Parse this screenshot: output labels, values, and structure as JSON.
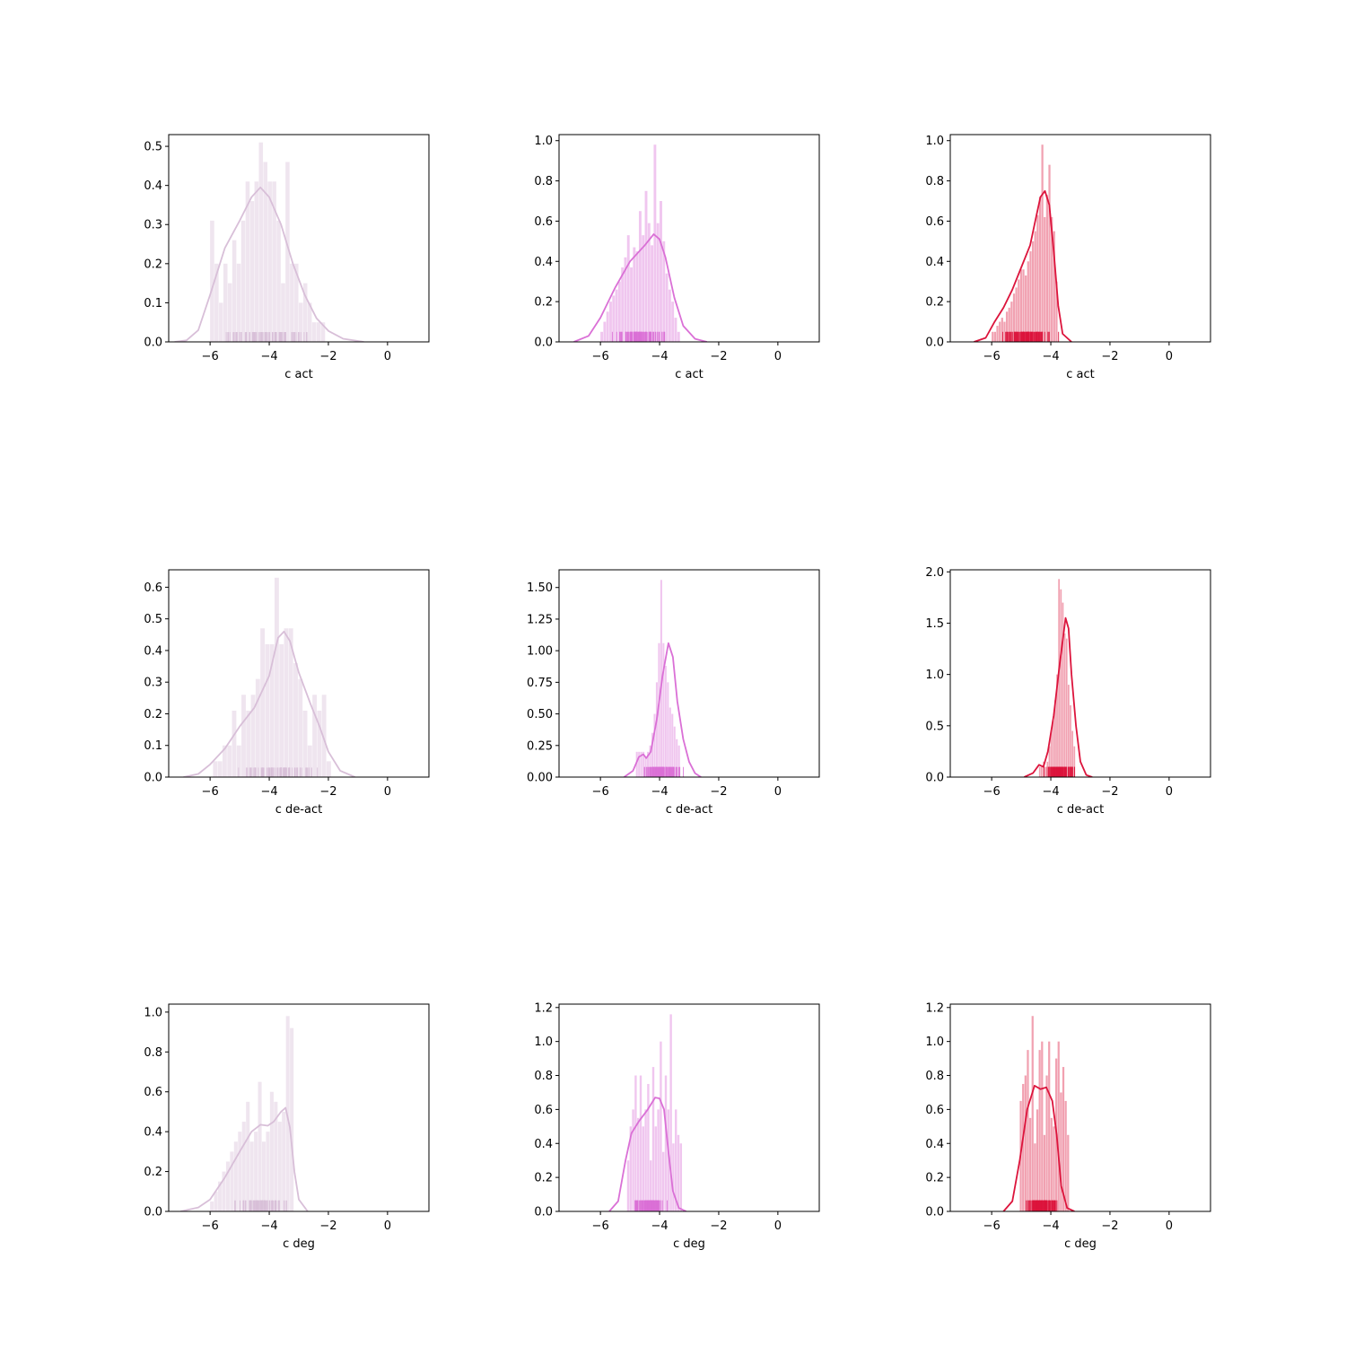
{
  "chart_data": [
    {
      "type": "histogram+kde+rug",
      "xlabel": "c act",
      "color": "#d8bfd8",
      "xlim": [
        -7.4,
        1.4
      ],
      "ylim": [
        0,
        0.53
      ],
      "xticks": [
        -6,
        -4,
        -2,
        0
      ],
      "yticks": [
        0.0,
        0.1,
        0.2,
        0.3,
        0.4,
        0.5
      ],
      "ytick_labels": [
        "0.0",
        "0.1",
        "0.2",
        "0.3",
        "0.4",
        "0.5"
      ],
      "bin_start": -6.0,
      "bin_width": 0.15,
      "bars": [
        0.31,
        0.2,
        0.1,
        0.2,
        0.15,
        0.26,
        0.2,
        0.31,
        0.41,
        0.36,
        0.41,
        0.51,
        0.46,
        0.41,
        0.41,
        0.31,
        0.15,
        0.46,
        0.2,
        0.2,
        0.1,
        0.15,
        0.1,
        0.05,
        0.05,
        0.05
      ],
      "kde": [
        [
          -7.2,
          0.0
        ],
        [
          -6.8,
          0.004
        ],
        [
          -6.4,
          0.03
        ],
        [
          -6.0,
          0.12
        ],
        [
          -5.5,
          0.24
        ],
        [
          -5.0,
          0.31
        ],
        [
          -4.6,
          0.37
        ],
        [
          -4.3,
          0.395
        ],
        [
          -4.0,
          0.37
        ],
        [
          -3.6,
          0.3
        ],
        [
          -3.2,
          0.2
        ],
        [
          -2.8,
          0.12
        ],
        [
          -2.4,
          0.06
        ],
        [
          -2.0,
          0.028
        ],
        [
          -1.5,
          0.008
        ],
        [
          -0.8,
          0.0
        ]
      ],
      "rug_range": [
        -6.0,
        -2.0
      ],
      "rug_height": 0.025
    },
    {
      "type": "histogram+kde+rug",
      "xlabel": "c act",
      "color": "#da70d6",
      "xlim": [
        -7.4,
        1.4
      ],
      "ylim": [
        0,
        1.03
      ],
      "xticks": [
        -6,
        -4,
        -2,
        0
      ],
      "yticks": [
        0.0,
        0.2,
        0.4,
        0.6,
        0.8,
        1.0
      ],
      "ytick_labels": [
        "0.0",
        "0.2",
        "0.4",
        "0.6",
        "0.8",
        "1.0"
      ],
      "bin_start": -6.0,
      "bin_width": 0.1,
      "bars": [
        0.05,
        0.1,
        0.15,
        0.2,
        0.23,
        0.26,
        0.3,
        0.37,
        0.42,
        0.53,
        0.37,
        0.47,
        0.45,
        0.65,
        0.53,
        0.75,
        0.59,
        0.48,
        0.98,
        0.59,
        0.7,
        0.5,
        0.34,
        0.26,
        0.2,
        0.12,
        0.05
      ],
      "kde": [
        [
          -6.9,
          0.0
        ],
        [
          -6.4,
          0.03
        ],
        [
          -6.0,
          0.12
        ],
        [
          -5.5,
          0.27
        ],
        [
          -5.0,
          0.4
        ],
        [
          -4.5,
          0.48
        ],
        [
          -4.2,
          0.535
        ],
        [
          -4.0,
          0.51
        ],
        [
          -3.8,
          0.42
        ],
        [
          -3.5,
          0.22
        ],
        [
          -3.2,
          0.08
        ],
        [
          -2.8,
          0.015
        ],
        [
          -2.4,
          0.0
        ]
      ],
      "rug_range": [
        -5.95,
        -3.3
      ],
      "rug_height": 0.05
    },
    {
      "type": "histogram+kde+rug",
      "xlabel": "c act",
      "color": "#dc143c",
      "xlim": [
        -7.4,
        1.4
      ],
      "ylim": [
        0,
        1.03
      ],
      "xticks": [
        -6,
        -4,
        -2,
        0
      ],
      "yticks": [
        0.0,
        0.2,
        0.4,
        0.6,
        0.8,
        1.0
      ],
      "ytick_labels": [
        "0.0",
        "0.2",
        "0.4",
        "0.6",
        "0.8",
        "1.0"
      ],
      "bin_start": -6.0,
      "bin_width": 0.08,
      "bars": [
        0.05,
        0.05,
        0.08,
        0.1,
        0.12,
        0.1,
        0.15,
        0.17,
        0.2,
        0.24,
        0.27,
        0.31,
        0.36,
        0.36,
        0.33,
        0.4,
        0.45,
        0.5,
        0.55,
        0.63,
        0.72,
        0.98,
        0.62,
        0.73,
        0.88,
        0.62,
        0.55,
        0.3
      ],
      "kde": [
        [
          -6.6,
          0.0
        ],
        [
          -6.2,
          0.02
        ],
        [
          -5.9,
          0.1
        ],
        [
          -5.6,
          0.17
        ],
        [
          -5.3,
          0.26
        ],
        [
          -5.0,
          0.37
        ],
        [
          -4.7,
          0.48
        ],
        [
          -4.5,
          0.62
        ],
        [
          -4.35,
          0.72
        ],
        [
          -4.2,
          0.75
        ],
        [
          -4.05,
          0.68
        ],
        [
          -3.9,
          0.45
        ],
        [
          -3.75,
          0.18
        ],
        [
          -3.6,
          0.04
        ],
        [
          -3.3,
          0.0
        ]
      ],
      "rug_range": [
        -5.95,
        -3.6
      ],
      "rug_height": 0.05
    },
    {
      "type": "histogram+kde+rug",
      "xlabel": "c de-act",
      "color": "#d8bfd8",
      "xlim": [
        -7.4,
        1.4
      ],
      "ylim": [
        0,
        0.655
      ],
      "xticks": [
        -6,
        -4,
        -2,
        0
      ],
      "yticks": [
        0.0,
        0.1,
        0.2,
        0.3,
        0.4,
        0.5,
        0.6
      ],
      "ytick_labels": [
        "0.0",
        "0.1",
        "0.2",
        "0.3",
        "0.4",
        "0.5",
        "0.6"
      ],
      "bin_start": -5.9,
      "bin_width": 0.16,
      "bars": [
        0.05,
        0.05,
        0.1,
        0.1,
        0.21,
        0.1,
        0.26,
        0.21,
        0.26,
        0.31,
        0.47,
        0.42,
        0.42,
        0.63,
        0.42,
        0.47,
        0.47,
        0.36,
        0.31,
        0.21,
        0.1,
        0.26,
        0.21,
        0.26,
        0.05
      ],
      "kde": [
        [
          -6.9,
          0.0
        ],
        [
          -6.4,
          0.01
        ],
        [
          -6.0,
          0.04
        ],
        [
          -5.5,
          0.09
        ],
        [
          -5.0,
          0.16
        ],
        [
          -4.5,
          0.22
        ],
        [
          -4.0,
          0.32
        ],
        [
          -3.7,
          0.44
        ],
        [
          -3.5,
          0.46
        ],
        [
          -3.3,
          0.43
        ],
        [
          -3.0,
          0.33
        ],
        [
          -2.6,
          0.23
        ],
        [
          -2.3,
          0.16
        ],
        [
          -2.0,
          0.08
        ],
        [
          -1.6,
          0.02
        ],
        [
          -1.1,
          0.0
        ]
      ],
      "rug_range": [
        -5.4,
        -2.0
      ],
      "rug_height": 0.03
    },
    {
      "type": "histogram+kde+rug",
      "xlabel": "c de-act",
      "color": "#da70d6",
      "xlim": [
        -7.4,
        1.4
      ],
      "ylim": [
        0,
        1.64
      ],
      "xticks": [
        -6,
        -4,
        -2,
        0
      ],
      "yticks": [
        0.0,
        0.25,
        0.5,
        0.75,
        1.0,
        1.25,
        1.5
      ],
      "ytick_labels": [
        "0.00",
        "0.25",
        "0.50",
        "0.75",
        "1.00",
        "1.25",
        "1.50"
      ],
      "bin_start": -4.8,
      "bin_width": 0.075,
      "bars": [
        0.2,
        0.2,
        0.2,
        0.2,
        0.15,
        0.2,
        0.25,
        0.35,
        0.5,
        0.75,
        1.06,
        1.56,
        1.06,
        0.88,
        0.75,
        0.55,
        0.5,
        0.4,
        0.3,
        0.25
      ],
      "kde": [
        [
          -5.2,
          0.0
        ],
        [
          -4.9,
          0.05
        ],
        [
          -4.7,
          0.16
        ],
        [
          -4.55,
          0.18
        ],
        [
          -4.45,
          0.15
        ],
        [
          -4.3,
          0.2
        ],
        [
          -4.1,
          0.45
        ],
        [
          -3.9,
          0.8
        ],
        [
          -3.7,
          1.06
        ],
        [
          -3.55,
          0.95
        ],
        [
          -3.4,
          0.6
        ],
        [
          -3.2,
          0.3
        ],
        [
          -3.0,
          0.12
        ],
        [
          -2.8,
          0.03
        ],
        [
          -2.6,
          0.0
        ]
      ],
      "rug_range": [
        -4.75,
        -3.05
      ],
      "rug_height": 0.08
    },
    {
      "type": "histogram+kde+rug",
      "xlabel": "c de-act",
      "color": "#dc143c",
      "xlim": [
        -7.4,
        1.4
      ],
      "ylim": [
        0,
        2.02
      ],
      "xticks": [
        -6,
        -4,
        -2,
        0
      ],
      "yticks": [
        0.0,
        0.5,
        1.0,
        1.5,
        2.0
      ],
      "ytick_labels": [
        "0.0",
        "0.5",
        "1.0",
        "1.5",
        "2.0"
      ],
      "bin_start": -4.4,
      "bin_width": 0.065,
      "bars": [
        0.1,
        0.1,
        0.15,
        0.1,
        0.15,
        0.3,
        0.45,
        0.55,
        0.75,
        1.0,
        1.93,
        1.83,
        1.7,
        1.4,
        1.35,
        0.9,
        0.7,
        0.45,
        0.3
      ],
      "kde": [
        [
          -4.9,
          0.0
        ],
        [
          -4.6,
          0.04
        ],
        [
          -4.4,
          0.12
        ],
        [
          -4.25,
          0.1
        ],
        [
          -4.1,
          0.25
        ],
        [
          -3.9,
          0.6
        ],
        [
          -3.7,
          1.1
        ],
        [
          -3.5,
          1.55
        ],
        [
          -3.4,
          1.45
        ],
        [
          -3.3,
          1.0
        ],
        [
          -3.15,
          0.5
        ],
        [
          -3.0,
          0.15
        ],
        [
          -2.8,
          0.02
        ],
        [
          -2.6,
          0.0
        ]
      ],
      "rug_range": [
        -4.35,
        -3.0
      ],
      "rug_height": 0.1
    },
    {
      "type": "histogram+kde+rug",
      "xlabel": "c deg",
      "color": "#d8bfd8",
      "xlim": [
        -7.4,
        1.4
      ],
      "ylim": [
        0,
        1.04
      ],
      "xticks": [
        -6,
        -4,
        -2,
        0
      ],
      "yticks": [
        0.0,
        0.2,
        0.4,
        0.6,
        0.8,
        1.0
      ],
      "ytick_labels": [
        "0.0",
        "0.2",
        "0.4",
        "0.6",
        "0.8",
        "1.0"
      ],
      "bin_start": -6.0,
      "bin_width": 0.135,
      "bars": [
        0.05,
        0.1,
        0.15,
        0.2,
        0.25,
        0.3,
        0.35,
        0.4,
        0.45,
        0.55,
        0.35,
        0.4,
        0.65,
        0.35,
        0.4,
        0.6,
        0.55,
        0.45,
        0.5,
        0.98,
        0.92
      ],
      "kde": [
        [
          -7.0,
          0.0
        ],
        [
          -6.4,
          0.02
        ],
        [
          -6.0,
          0.06
        ],
        [
          -5.5,
          0.17
        ],
        [
          -5.0,
          0.3
        ],
        [
          -4.6,
          0.4
        ],
        [
          -4.3,
          0.435
        ],
        [
          -4.05,
          0.43
        ],
        [
          -3.85,
          0.45
        ],
        [
          -3.6,
          0.5
        ],
        [
          -3.45,
          0.52
        ],
        [
          -3.3,
          0.42
        ],
        [
          -3.15,
          0.2
        ],
        [
          -3.0,
          0.06
        ],
        [
          -2.7,
          0.0
        ]
      ],
      "rug_range": [
        -5.4,
        -3.2
      ],
      "rug_height": 0.055
    },
    {
      "type": "histogram+kde+rug",
      "xlabel": "c deg",
      "color": "#da70d6",
      "xlim": [
        -7.4,
        1.4
      ],
      "ylim": [
        0,
        1.22
      ],
      "xticks": [
        -6,
        -4,
        -2,
        0
      ],
      "yticks": [
        0.0,
        0.2,
        0.4,
        0.6,
        0.8,
        1.0,
        1.2
      ],
      "ytick_labels": [
        "0.0",
        "0.2",
        "0.4",
        "0.6",
        "0.8",
        "1.0",
        "1.2"
      ],
      "bin_start": -5.1,
      "bin_width": 0.085,
      "bars": [
        0.3,
        0.5,
        0.6,
        0.8,
        0.55,
        0.8,
        0.5,
        0.6,
        0.75,
        0.3,
        0.85,
        0.5,
        0.6,
        1.0,
        0.35,
        0.8,
        0.6,
        1.16,
        0.4,
        0.6,
        0.45,
        0.4
      ],
      "kde": [
        [
          -5.7,
          0.0
        ],
        [
          -5.4,
          0.06
        ],
        [
          -5.15,
          0.3
        ],
        [
          -4.95,
          0.46
        ],
        [
          -4.7,
          0.53
        ],
        [
          -4.4,
          0.6
        ],
        [
          -4.15,
          0.67
        ],
        [
          -4.0,
          0.665
        ],
        [
          -3.85,
          0.6
        ],
        [
          -3.7,
          0.35
        ],
        [
          -3.55,
          0.12
        ],
        [
          -3.35,
          0.02
        ],
        [
          -3.1,
          0.0
        ]
      ],
      "rug_range": [
        -5.1,
        -3.5
      ],
      "rug_height": 0.065
    },
    {
      "type": "histogram+kde+rug",
      "xlabel": "c deg",
      "color": "#dc143c",
      "xlim": [
        -7.4,
        1.4
      ],
      "ylim": [
        0,
        1.22
      ],
      "xticks": [
        -6,
        -4,
        -2,
        0
      ],
      "yticks": [
        0.0,
        0.2,
        0.4,
        0.6,
        0.8,
        1.0,
        1.2
      ],
      "ytick_labels": [
        "0.0",
        "0.2",
        "0.4",
        "0.6",
        "0.8",
        "1.0",
        "1.2"
      ],
      "bin_start": -5.05,
      "bin_width": 0.08,
      "bars": [
        0.65,
        0.75,
        0.8,
        0.95,
        0.55,
        1.15,
        0.4,
        0.6,
        0.95,
        1.0,
        0.45,
        0.8,
        1.0,
        0.55,
        0.5,
        0.9,
        1.0,
        0.7,
        0.85,
        0.65,
        0.45
      ],
      "kde": [
        [
          -5.6,
          0.0
        ],
        [
          -5.3,
          0.06
        ],
        [
          -5.05,
          0.3
        ],
        [
          -4.8,
          0.6
        ],
        [
          -4.55,
          0.74
        ],
        [
          -4.35,
          0.72
        ],
        [
          -4.15,
          0.73
        ],
        [
          -3.95,
          0.65
        ],
        [
          -3.8,
          0.45
        ],
        [
          -3.65,
          0.15
        ],
        [
          -3.45,
          0.02
        ],
        [
          -3.2,
          0.0
        ]
      ],
      "rug_range": [
        -5.0,
        -3.6
      ],
      "rug_height": 0.065
    }
  ]
}
